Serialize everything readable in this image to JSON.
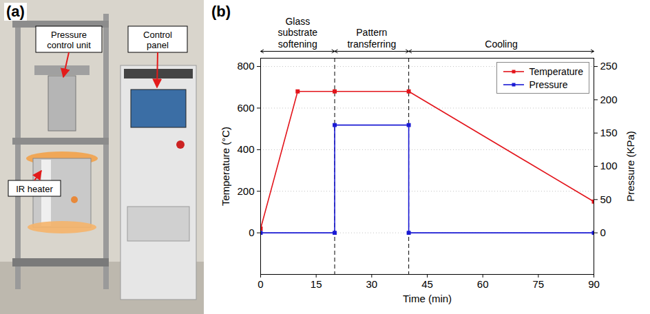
{
  "panels": [
    {
      "label": "(a)",
      "callouts": [
        "Pressure control unit",
        "Control panel",
        "IR heater"
      ]
    },
    {
      "label": "(b)"
    }
  ],
  "chart_data": {
    "type": "line",
    "xlabel": "Time (min)",
    "ylabel": "Temperature (°C)",
    "y2label": "Pressure (KPa)",
    "xlim": [
      0,
      90
    ],
    "xticks": [
      0,
      15,
      30,
      45,
      60,
      75,
      90
    ],
    "ylim": [
      -200,
      840
    ],
    "yticks": [
      0,
      200,
      400,
      600,
      800
    ],
    "y2lim": [
      -62.5,
      262.5
    ],
    "y2ticks": [
      0,
      50,
      100,
      150,
      200,
      250
    ],
    "grid": true,
    "legend": "top-right",
    "annotations": [
      {
        "text": "Glass substrate softening",
        "x": [
          0,
          20
        ]
      },
      {
        "text": "Pattern transferring",
        "x": [
          20,
          40
        ]
      },
      {
        "text": "Cooling",
        "x": [
          40,
          90
        ]
      }
    ],
    "series": [
      {
        "name": "Temperature",
        "color": "#e3141b",
        "axis": "y",
        "marker": "square",
        "line_style": "solid",
        "x": [
          0,
          10,
          20,
          40,
          90
        ],
        "values": [
          20,
          680,
          680,
          680,
          150
        ]
      },
      {
        "name": "Pressure",
        "color": "#1a1ad4",
        "axis": "y2",
        "marker": "square",
        "line_style": "solid",
        "x": [
          0,
          20,
          20,
          40,
          40,
          90
        ],
        "values": [
          0,
          0,
          162,
          162,
          0,
          0
        ]
      }
    ]
  }
}
